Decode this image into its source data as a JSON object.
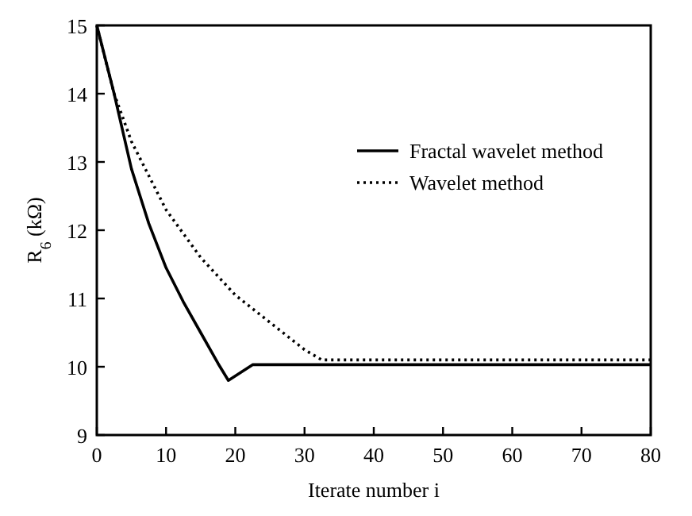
{
  "chart_data": {
    "type": "line",
    "xlabel": "Iterate number i",
    "ylabel": "R$_{6}$ (kΩ)",
    "xlim": [
      0,
      80
    ],
    "xticks": [
      0,
      10,
      20,
      30,
      40,
      50,
      60,
      70,
      80
    ],
    "ylim": [
      9,
      15
    ],
    "yticks": [
      9,
      10,
      11,
      12,
      13,
      14,
      15
    ],
    "grid": false,
    "legend": "top right",
    "marker": "none",
    "series": [
      {
        "name": "Fractal wavelet method",
        "color": "#000000",
        "line_style": "solid",
        "x": [
          0,
          2.5,
          5,
          7.5,
          10,
          12.5,
          15,
          17.5,
          19,
          22.5,
          80
        ],
        "values": [
          15,
          14,
          12.9,
          12.1,
          11.45,
          10.95,
          10.5,
          10.05,
          9.8,
          10.03,
          10.03
        ]
      },
      {
        "name": "Wavelet method",
        "color": "#000000",
        "line_style": "dotted",
        "x": [
          0,
          2.5,
          5,
          10,
          15,
          20,
          25,
          30,
          32.5,
          80
        ],
        "values": [
          15,
          14,
          13.3,
          12.3,
          11.6,
          11.05,
          10.65,
          10.25,
          10.1,
          10.1
        ]
      }
    ]
  }
}
